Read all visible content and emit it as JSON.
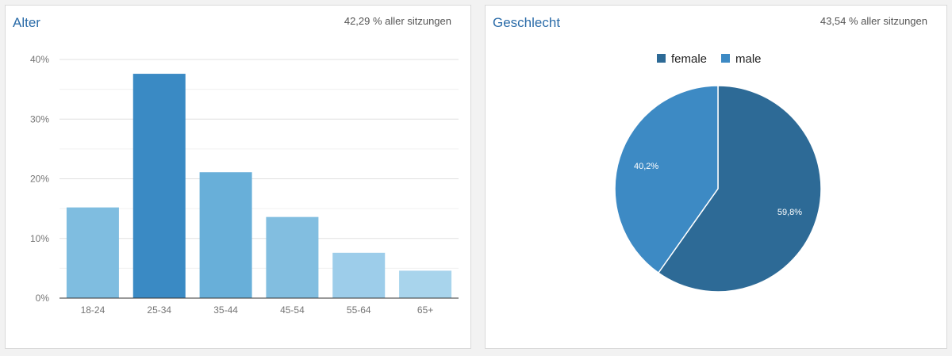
{
  "cards": {
    "age": {
      "title": "Alter",
      "meta": "42,29 % aller sitzungen"
    },
    "gender": {
      "title": "Geschlecht",
      "meta": "43,54 % aller sitzungen"
    }
  },
  "chart_data": [
    {
      "type": "bar",
      "title": "Alter",
      "categories": [
        "18-24",
        "25-34",
        "35-44",
        "45-54",
        "55-64",
        "65+"
      ],
      "values": [
        15.2,
        37.6,
        21.1,
        13.6,
        7.6,
        4.6
      ],
      "bar_colors": [
        "#7fbde0",
        "#3a8ac4",
        "#68afd9",
        "#82bee0",
        "#9dcdea",
        "#a8d4ec"
      ],
      "y_ticks": [
        "0%",
        "10%",
        "20%",
        "30%",
        "40%"
      ],
      "ylim": [
        0,
        40
      ],
      "y_unit": "%",
      "grid": true
    },
    {
      "type": "pie",
      "title": "Geschlecht",
      "legend_position": "top",
      "slices": [
        {
          "label": "female",
          "value": 59.8,
          "display": "59,8%",
          "color": "#2d6a96"
        },
        {
          "label": "male",
          "value": 40.2,
          "display": "40,2%",
          "color": "#3d8ac4"
        }
      ]
    }
  ]
}
